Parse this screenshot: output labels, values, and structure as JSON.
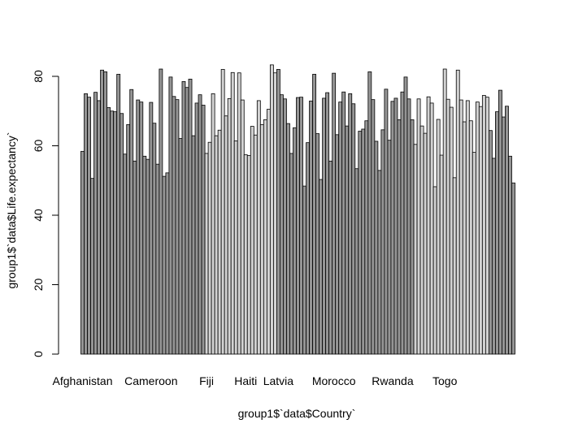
{
  "chart_data": {
    "type": "bar",
    "title": "",
    "xlabel": "group1$`data$Country`",
    "ylabel": "group1$`data$Life.expectancy`",
    "ylim": [
      0,
      80
    ],
    "yticks": [
      0,
      20,
      40,
      60,
      80
    ],
    "grid": false,
    "x_tick_labels": [
      "Afghanistan",
      "Cameroon",
      "Fiji",
      "Haiti",
      "Latvia",
      "Morocco",
      "Rwanda",
      "Togo"
    ],
    "x_tick_label_bar_index": [
      0,
      21,
      38,
      50,
      60,
      77,
      95,
      111
    ],
    "colors": {
      "dark": "#959595",
      "light": "#d3d3d3",
      "edge": "#000000"
    },
    "bar_shades": [
      "dark",
      "dark",
      "dark",
      "dark",
      "dark",
      "dark",
      "dark",
      "dark",
      "dark",
      "dark",
      "dark",
      "dark",
      "dark",
      "dark",
      "dark",
      "dark",
      "dark",
      "dark",
      "dark",
      "dark",
      "dark",
      "dark",
      "dark",
      "dark",
      "dark",
      "dark",
      "dark",
      "dark",
      "dark",
      "dark",
      "dark",
      "dark",
      "dark",
      "dark",
      "dark",
      "dark",
      "dark",
      "dark",
      "light",
      "light",
      "light",
      "light",
      "light",
      "light",
      "light",
      "light",
      "light",
      "light",
      "light",
      "light",
      "light",
      "light",
      "light",
      "light",
      "light",
      "light",
      "light",
      "light",
      "light",
      "light",
      "dark",
      "dark",
      "dark",
      "dark",
      "dark",
      "dark",
      "dark",
      "dark",
      "dark",
      "dark",
      "dark",
      "dark",
      "dark",
      "dark",
      "dark",
      "dark",
      "dark",
      "dark",
      "dark",
      "dark",
      "dark",
      "dark",
      "dark",
      "dark",
      "dark",
      "dark",
      "dark",
      "dark",
      "dark",
      "dark",
      "dark",
      "dark",
      "dark",
      "dark",
      "dark",
      "dark",
      "dark",
      "dark",
      "dark",
      "dark",
      "dark",
      "dark",
      "light",
      "light",
      "light",
      "light",
      "light",
      "light",
      "light",
      "light",
      "light",
      "light",
      "light",
      "light",
      "light",
      "light",
      "light",
      "light",
      "light",
      "light",
      "light",
      "light",
      "light",
      "light",
      "light"
    ],
    "values": [
      58.4,
      75.0,
      74.0,
      50.6,
      75.4,
      73.0,
      81.8,
      81.3,
      71.0,
      70.0,
      69.8,
      80.6,
      69.3,
      57.6,
      66.1,
      76.2,
      55.6,
      73.2,
      72.6,
      57.0,
      56.1,
      72.5,
      66.5,
      54.7,
      82.1,
      51.2,
      52.2,
      79.8,
      74.2,
      73.3,
      62.1,
      78.5,
      76.8,
      79.2,
      62.9,
      72.3,
      74.7,
      71.7,
      57.8,
      61.0,
      75.0,
      62.9,
      64.5,
      82.0,
      68.6,
      73.6,
      81.1,
      61.4,
      81.0,
      73.2,
      57.4,
      57.2,
      65.6,
      63.1,
      73.0,
      66.1,
      67.5,
      70.5,
      83.3,
      81.0,
      82.0,
      74.7,
      73.5,
      66.4,
      57.8,
      65.2,
      73.9,
      74.0,
      48.4,
      60.9,
      72.9,
      80.6,
      63.5,
      50.3,
      73.7,
      75.3,
      55.6,
      80.9,
      63.2,
      72.6,
      75.5,
      65.7,
      75.0,
      72.1,
      53.4,
      64.2,
      64.8,
      67.2,
      81.3,
      73.3,
      61.3,
      52.9,
      64.6,
      76.3,
      61.6,
      72.8,
      73.7,
      67.5,
      75.5,
      79.8,
      73.5,
      67.5,
      60.4,
      73.5,
      65.7,
      63.6,
      74.1,
      72.3,
      48.2,
      67.6,
      57.3,
      82.1,
      73.4,
      71.1,
      50.8,
      81.8,
      73.2,
      66.9,
      73.0,
      67.2,
      58.1,
      72.6,
      71.3,
      74.5,
      74.0,
      64.4,
      56.4,
      69.8,
      76.0,
      68.3,
      71.4,
      57.0,
      49.3
    ]
  }
}
